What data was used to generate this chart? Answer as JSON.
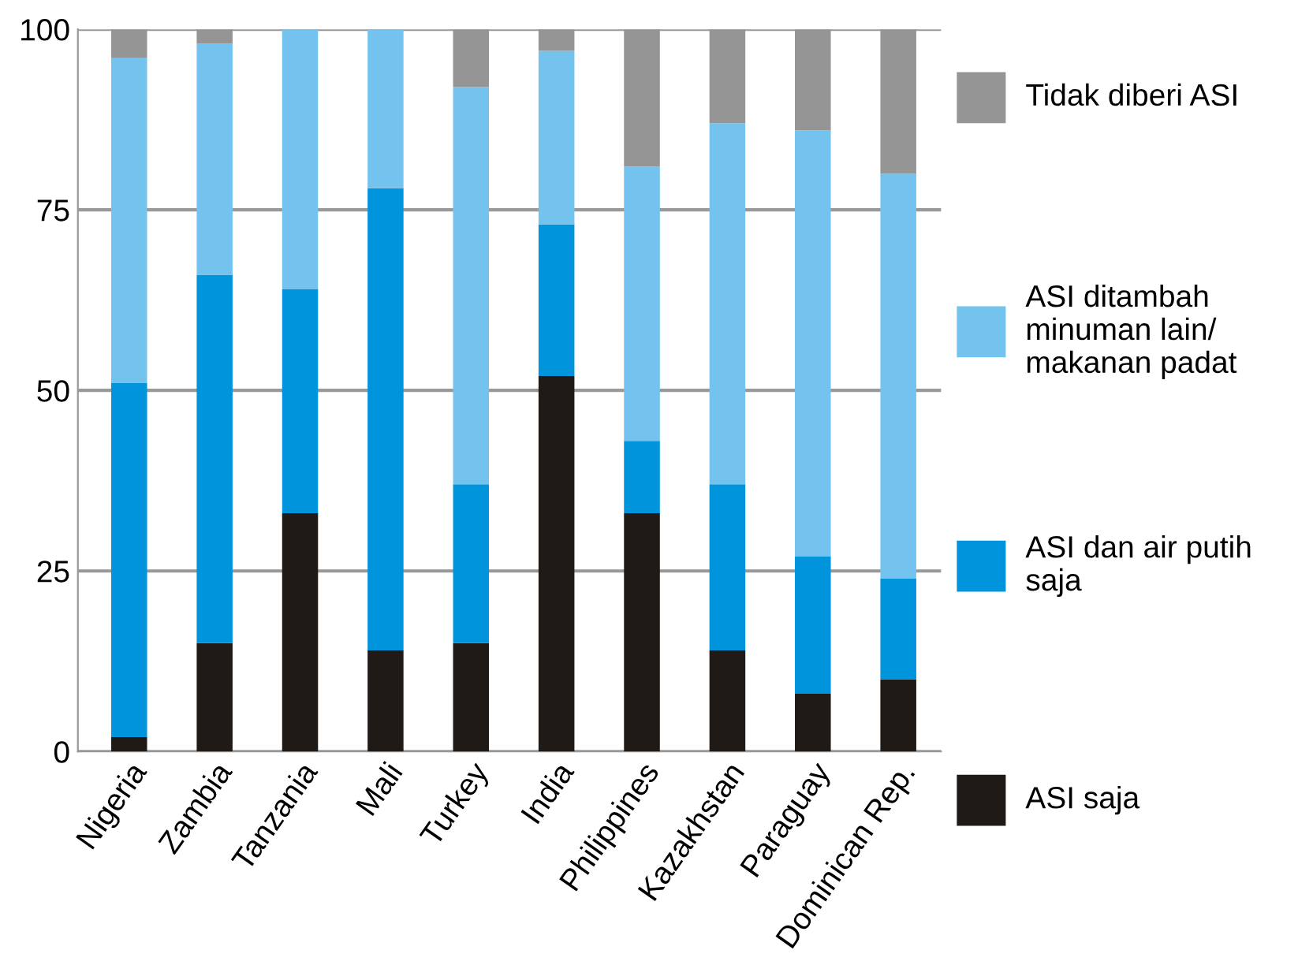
{
  "chart_data": {
    "type": "bar",
    "stacked": true,
    "categories": [
      "Nigeria",
      "Zambia",
      "Tanzania",
      "Mali",
      "Turkey",
      "India",
      "Philippines",
      "Kazakhstan",
      "Paraguay",
      "Dominican Rep."
    ],
    "series": [
      {
        "name": "ASI saja",
        "color": "#201a17",
        "values": [
          2,
          15,
          33,
          14,
          15,
          52,
          33,
          14,
          8,
          10
        ]
      },
      {
        "name": "ASI dan air putih saja",
        "color": "#0094dc",
        "values": [
          49,
          51,
          31,
          64,
          22,
          21,
          10,
          23,
          19,
          14
        ]
      },
      {
        "name": "ASI ditambah minuman lain/ makanan padat",
        "color": "#74c3ee",
        "values": [
          45,
          32,
          36,
          22,
          55,
          24,
          38,
          50,
          59,
          56
        ]
      },
      {
        "name": "Tidak diberi ASI",
        "color": "#959595",
        "values": [
          4,
          2,
          0,
          0,
          8,
          3,
          19,
          13,
          14,
          20
        ]
      }
    ],
    "ylim": [
      0,
      100
    ],
    "yticks": [
      0,
      25,
      50,
      75,
      100
    ],
    "grid": "y",
    "legend": "right"
  }
}
